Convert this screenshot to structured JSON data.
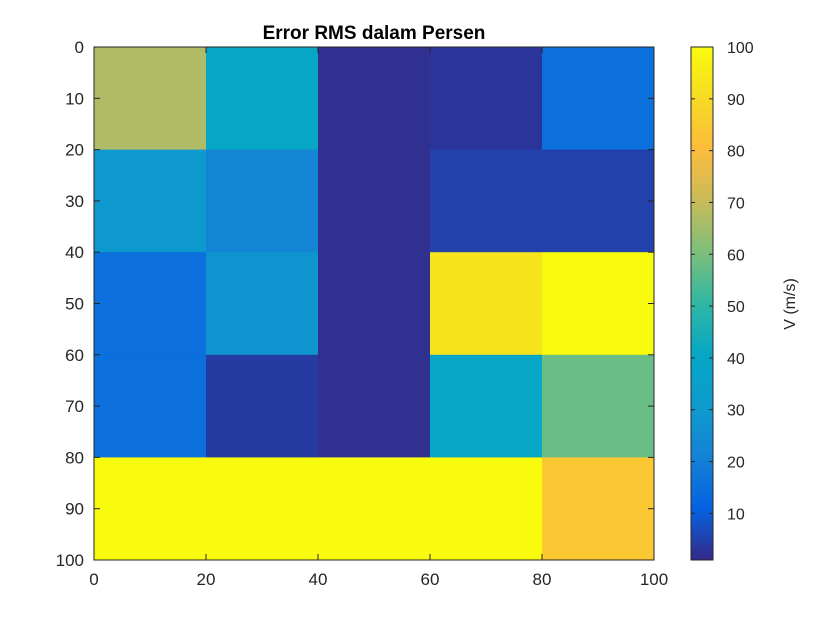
{
  "chart_data": {
    "type": "heatmap",
    "title": "Error RMS dalam Persen",
    "xlabel": "",
    "ylabel": "",
    "xlim": [
      0,
      100
    ],
    "ylim": [
      0,
      100
    ],
    "y_direction": "reversed",
    "x_ticks": [
      "0",
      "20",
      "40",
      "60",
      "80",
      "100"
    ],
    "y_ticks": [
      "0",
      "10",
      "20",
      "30",
      "40",
      "50",
      "60",
      "70",
      "80",
      "90",
      "100"
    ],
    "grid": false,
    "x_edges": [
      0,
      20,
      40,
      60,
      80,
      100
    ],
    "y_edges": [
      0,
      20,
      40,
      60,
      80,
      100
    ],
    "values": [
      [
        67,
        40,
        2,
        3,
        15
      ],
      [
        30,
        22,
        2,
        5,
        5
      ],
      [
        15,
        28,
        2,
        93,
        100
      ],
      [
        15,
        4,
        2,
        40,
        58
      ],
      [
        100,
        100,
        100,
        100,
        84
      ]
    ],
    "colorbar": {
      "label": "V (m/s)",
      "min": 1,
      "max": 100,
      "ticks": [
        "10",
        "20",
        "30",
        "40",
        "50",
        "60",
        "70",
        "80",
        "90",
        "100"
      ],
      "colormap": "parula"
    }
  }
}
